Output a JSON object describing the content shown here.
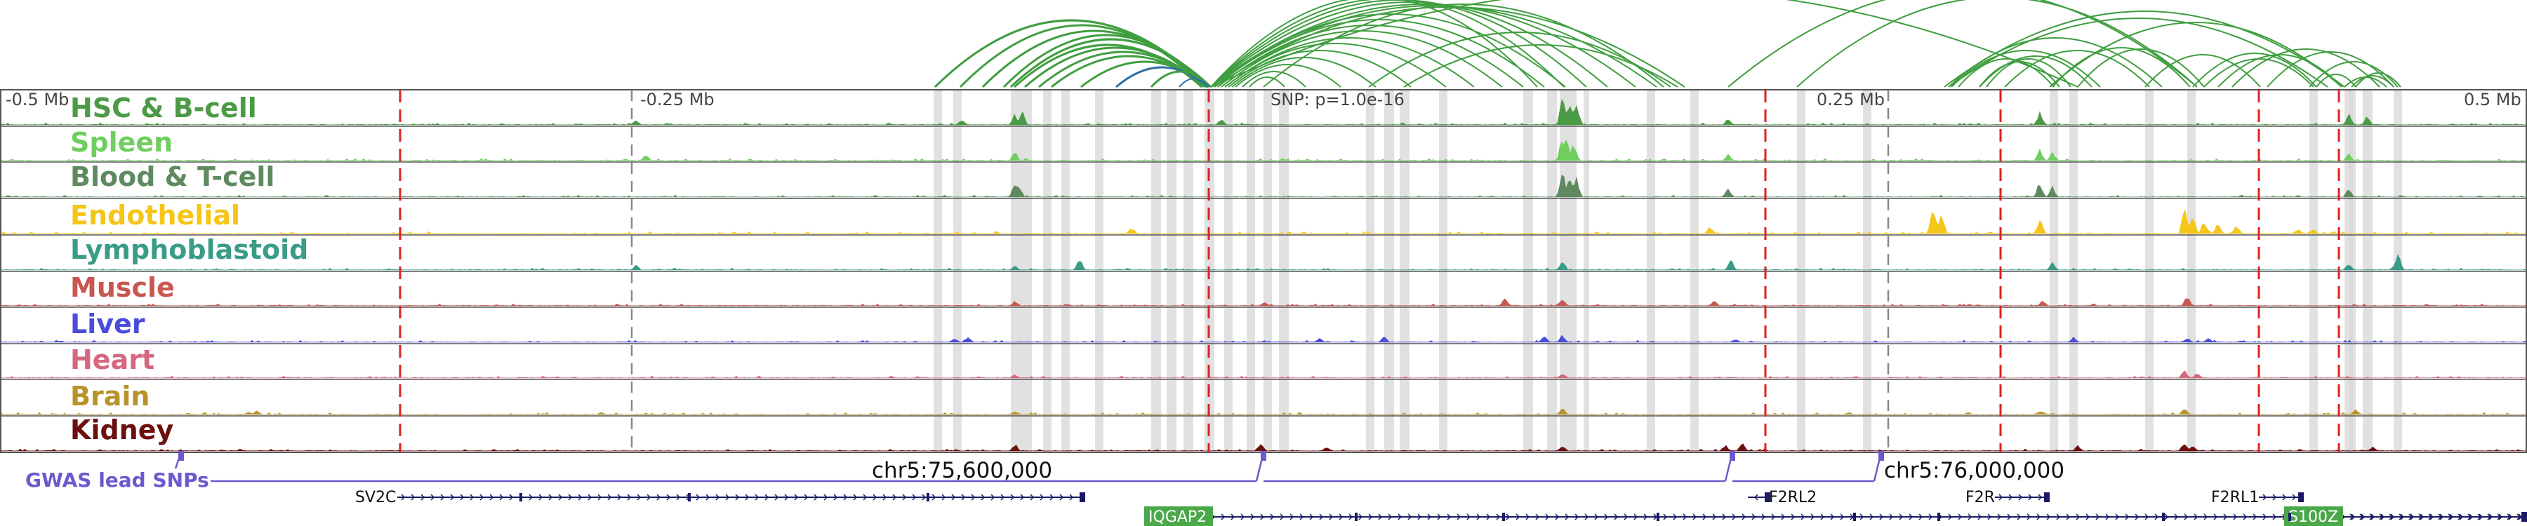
{
  "browser": {
    "scale": {
      "left": "-0.5 Mb",
      "m025": "-0.25 Mb",
      "snp": "SNP: p=1.0e-16",
      "p025": "0.25 Mb",
      "right": "0.5 Mb"
    },
    "tracks": [
      {
        "name": "HSC & B-cell",
        "color": "#4b9a45"
      },
      {
        "name": "Spleen",
        "color": "#6fce5e"
      },
      {
        "name": "Blood & T-cell",
        "color": "#5f8a60"
      },
      {
        "name": "Endothelial",
        "color": "#f5c518"
      },
      {
        "name": "Lymphoblastoid",
        "color": "#3a9c87"
      },
      {
        "name": "Muscle",
        "color": "#c8574f"
      },
      {
        "name": "Liver",
        "color": "#4b4bdc"
      },
      {
        "name": "Heart",
        "color": "#d5677e"
      },
      {
        "name": "Brain",
        "color": "#b8922a"
      },
      {
        "name": "Kidney",
        "color": "#6b0f0f"
      }
    ],
    "gwas": {
      "label": "GWAS lead SNPs",
      "color": "#6a5acd"
    },
    "coords": {
      "left": "chr5:75,600,000",
      "right": "chr5:76,000,000"
    },
    "genes": [
      {
        "name": "SV2C",
        "boxed": false
      },
      {
        "name": "IQGAP2",
        "boxed": true
      },
      {
        "name": "F2RL2",
        "boxed": false
      },
      {
        "name": "F2R",
        "boxed": false
      },
      {
        "name": "F2RL1",
        "boxed": false
      },
      {
        "name": "S100Z",
        "boxed": true
      }
    ],
    "colors": {
      "arc": "#3f9e3f",
      "arc_highlight": "#2f6fa5",
      "boundary": "#e02020",
      "gene": "#1a1a66",
      "gene_box": "#4aa84a",
      "highlight": "#d7d7d7"
    }
  }
}
